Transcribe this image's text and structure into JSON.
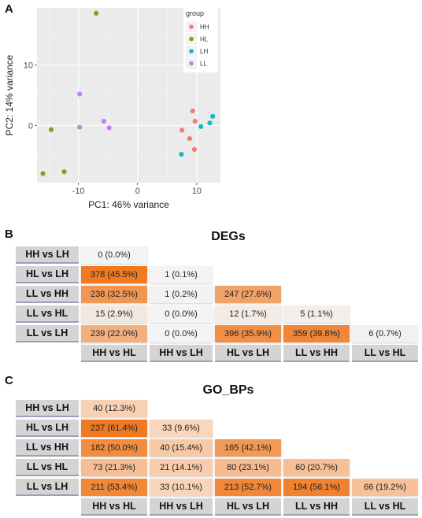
{
  "panels": {
    "a": "A",
    "b": "B",
    "c": "C"
  },
  "chart_data": [
    {
      "type": "scatter",
      "title": "",
      "xlabel": "PC1: 46% variance",
      "ylabel": "PC2: 14% variance",
      "xlim": [
        -17,
        14
      ],
      "ylim": [
        -9.5,
        19.5
      ],
      "xticks": [
        -10,
        0,
        10
      ],
      "yticks": [
        0,
        10
      ],
      "grid": true,
      "legend": {
        "title": "group",
        "placement": "top-right"
      },
      "series": [
        {
          "name": "HH",
          "color": "#f07e72",
          "points": [
            [
              7.5,
              -0.8
            ],
            [
              8.8,
              -2.2
            ],
            [
              9.3,
              2.4
            ],
            [
              9.6,
              -4.0
            ],
            [
              9.7,
              0.7
            ]
          ]
        },
        {
          "name": "HL",
          "color": "#7ca421",
          "points": [
            [
              -7.0,
              18.6
            ],
            [
              -14.6,
              -0.7
            ],
            [
              -16.0,
              -8.0
            ],
            [
              -12.4,
              -7.7
            ]
          ]
        },
        {
          "name": "LH",
          "color": "#18b8c2",
          "points": [
            [
              7.4,
              -4.8
            ],
            [
              10.7,
              -0.2
            ],
            [
              12.2,
              0.4
            ],
            [
              12.7,
              1.5
            ]
          ]
        },
        {
          "name": "LL",
          "color": "#cb7bf2",
          "points": [
            [
              -9.8,
              5.2
            ],
            [
              -9.8,
              -0.3
            ],
            [
              -5.7,
              0.7
            ],
            [
              -4.8,
              -0.4
            ]
          ]
        }
      ]
    },
    {
      "type": "heatmap",
      "title": "DEGs",
      "row_labels": [
        "HH vs LH",
        "HL vs LH",
        "LL vs HH",
        "LL vs HL",
        "LL vs LH"
      ],
      "col_labels": [
        "HH vs HL",
        "HH vs LH",
        "HL vs LH",
        "LL vs HH",
        "LL vs HL"
      ],
      "cells": [
        [
          {
            "count": 0,
            "pct": 0.0,
            "label": "0 (0.0%)"
          }
        ],
        [
          {
            "count": 378,
            "pct": 45.5,
            "label": "378 (45.5%)"
          },
          {
            "count": 1,
            "pct": 0.1,
            "label": "1 (0.1%)"
          }
        ],
        [
          {
            "count": 238,
            "pct": 32.5,
            "label": "238 (32.5%)"
          },
          {
            "count": 1,
            "pct": 0.2,
            "label": "1 (0.2%)"
          },
          {
            "count": 247,
            "pct": 27.6,
            "label": "247 (27.6%)"
          }
        ],
        [
          {
            "count": 15,
            "pct": 2.9,
            "label": "15 (2.9%)"
          },
          {
            "count": 0,
            "pct": 0.0,
            "label": "0 (0.0%)"
          },
          {
            "count": 12,
            "pct": 1.7,
            "label": "12 (1.7%)"
          },
          {
            "count": 5,
            "pct": 1.1,
            "label": "5 (1.1%)"
          }
        ],
        [
          {
            "count": 239,
            "pct": 22.0,
            "label": "239 (22.0%)"
          },
          {
            "count": 0,
            "pct": 0.0,
            "label": "0 (0.0%)"
          },
          {
            "count": 396,
            "pct": 35.9,
            "label": "396 (35.9%)"
          },
          {
            "count": 359,
            "pct": 39.8,
            "label": "359 (39.8%)"
          },
          {
            "count": 6,
            "pct": 0.7,
            "label": "6 (0.7%)"
          }
        ]
      ],
      "color_scale": {
        "low": "#f4f4f4",
        "high": "#f07a22",
        "max_pct": 45.5
      }
    },
    {
      "type": "heatmap",
      "title": "GO_BPs",
      "row_labels": [
        "HH vs LH",
        "HL vs LH",
        "LL vs HH",
        "LL vs HL",
        "LL vs LH"
      ],
      "col_labels": [
        "HH vs HL",
        "HH vs LH",
        "HL vs LH",
        "LL vs HH",
        "LL vs HL"
      ],
      "cells": [
        [
          {
            "count": 40,
            "pct": 12.3,
            "label": "40 (12.3%)"
          }
        ],
        [
          {
            "count": 237,
            "pct": 61.4,
            "label": "237 (61.4%)"
          },
          {
            "count": 33,
            "pct": 9.6,
            "label": "33 (9.6%)"
          }
        ],
        [
          {
            "count": 182,
            "pct": 50.0,
            "label": "182 (50.0%)"
          },
          {
            "count": 40,
            "pct": 15.4,
            "label": "40 (15.4%)"
          },
          {
            "count": 165,
            "pct": 42.1,
            "label": "165 (42.1%)"
          }
        ],
        [
          {
            "count": 73,
            "pct": 21.3,
            "label": "73 (21.3%)"
          },
          {
            "count": 21,
            "pct": 14.1,
            "label": "21 (14.1%)"
          },
          {
            "count": 80,
            "pct": 23.1,
            "label": "80 (23.1%)"
          },
          {
            "count": 60,
            "pct": 20.7,
            "label": "60 (20.7%)"
          }
        ],
        [
          {
            "count": 211,
            "pct": 53.4,
            "label": "211 (53.4%)"
          },
          {
            "count": 33,
            "pct": 10.1,
            "label": "33 (10.1%)"
          },
          {
            "count": 213,
            "pct": 52.7,
            "label": "213 (52.7%)"
          },
          {
            "count": 194,
            "pct": 56.1,
            "label": "194 (56.1%)"
          },
          {
            "count": 66,
            "pct": 19.2,
            "label": "66 (19.2%)"
          }
        ]
      ],
      "color_scale": {
        "low": "#fbf1e9",
        "high": "#f07a22",
        "max_pct": 61.4
      }
    }
  ]
}
